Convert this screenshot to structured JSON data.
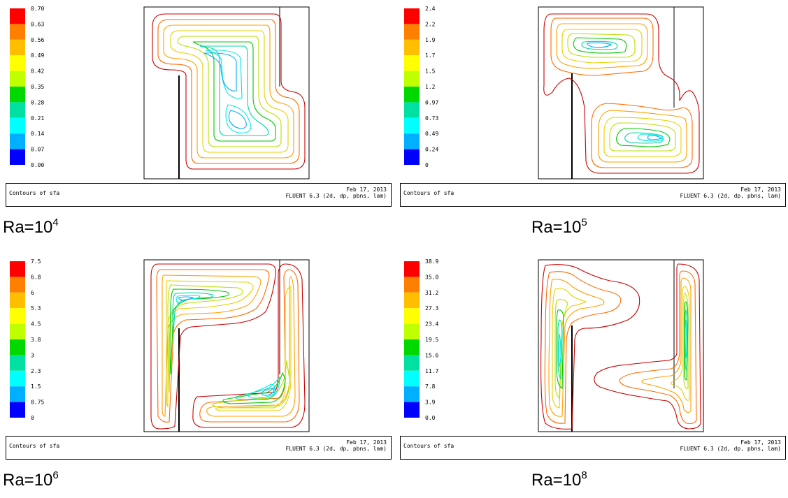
{
  "colors": [
    "#ff0000",
    "#ff7f00",
    "#ffbf00",
    "#ffff00",
    "#c0ff00",
    "#00d800",
    "#00e0a0",
    "#00ffff",
    "#00b0ff",
    "#0000ff"
  ],
  "panels": [
    {
      "legend": [
        "0.70",
        "0.63",
        "0.56",
        "0.49",
        "0.42",
        "0.35",
        "0.28",
        "0.21",
        "0.14",
        "0.07",
        "0.00"
      ],
      "footer_left": "Contours of sfa",
      "footer_date": "Feb 17, 2013",
      "footer_solver": "FLUENT 6.3 (2d, dp, pbns, lam)",
      "caption_base": "Ra=10",
      "caption_exp": "4"
    },
    {
      "legend": [
        "2.4",
        "2.2",
        "1.9",
        "1.7",
        "1.5",
        "1.2",
        "0.97",
        "0.73",
        "0.49",
        "0.24",
        "0"
      ],
      "footer_left": "Contours of sfa",
      "footer_date": "Feb 17, 2013",
      "footer_solver": "FLUENT 6.3 (2d, dp, pbns, lam)",
      "caption_base": "Ra=10",
      "caption_exp": "5"
    },
    {
      "legend": [
        "7.5",
        "6.8",
        "6",
        "5.3",
        "4.5",
        "3.8",
        "3",
        "2.3",
        "1.5",
        "0.75",
        "0"
      ],
      "footer_left": "Contours of sfa",
      "footer_date": "Feb 17, 2013",
      "footer_solver": "FLUENT 6.3 (2d, dp, pbns, lam)",
      "caption_base": "Ra=10",
      "caption_exp": "6"
    },
    {
      "legend": [
        "38.9",
        "35.0",
        "31.2",
        "27.3",
        "23.4",
        "19.5",
        "15.6",
        "11.7",
        "7.8",
        "3.9",
        "0.0"
      ],
      "footer_left": "Contours of sfa",
      "footer_date": "Feb 17, 2013",
      "footer_solver": "FLUENT 6.3 (2d, dp, pbns, lam)",
      "caption_base": "Ra=10",
      "caption_exp": "8"
    }
  ]
}
